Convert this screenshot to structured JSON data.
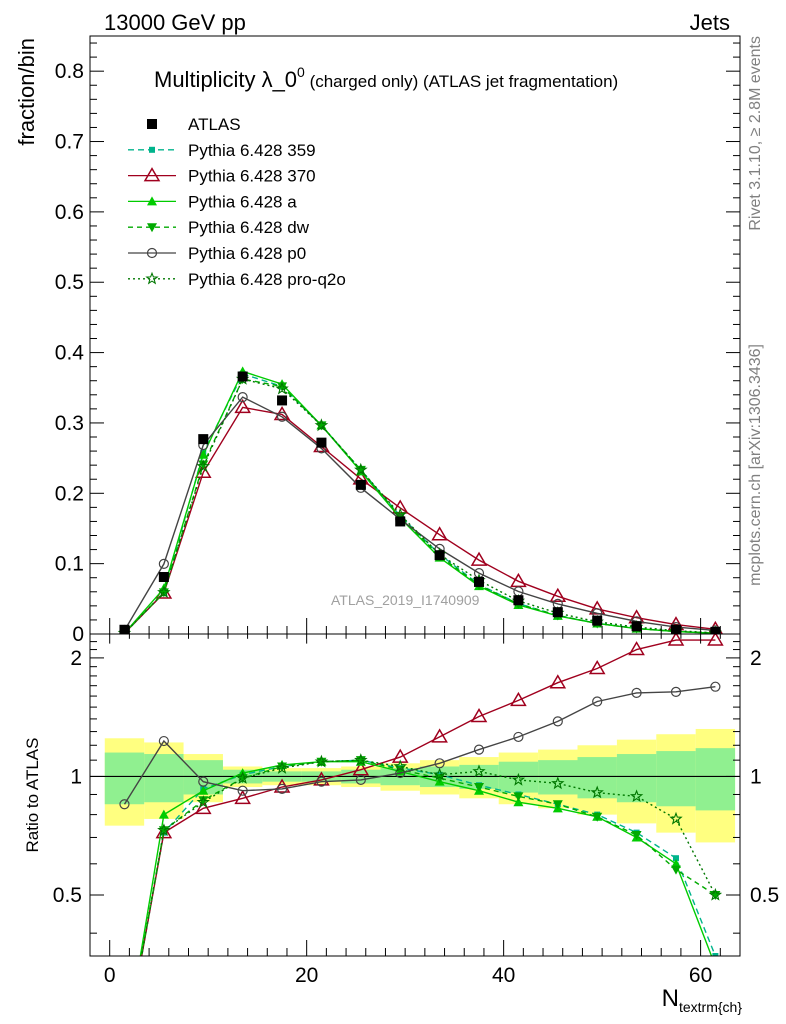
{
  "header": {
    "left": "13000 GeV pp",
    "right": "Jets"
  },
  "side_labels": {
    "rivet": "Rivet 3.1.10, ≥ 2.8M events",
    "mcplots": "mcplots.cern.ch [arXiv:1306.3436]"
  },
  "analysis_id": "ATLAS_2019_I1740909",
  "chart_data": {
    "type": "line",
    "title": "Multiplicity λ_0",
    "title_sup": "0",
    "title_suffix": " (charged only) (ATLAS jet fragmentation)",
    "xlabel": "N",
    "xlabel_sub": "textrm{ch}",
    "ylabel": "fraction/bin",
    "ratio_ylabel": "Ratio to ATLAS",
    "xlim": [
      -2,
      64
    ],
    "ylim": [
      0,
      0.85
    ],
    "ratio_ylim": [
      0.35,
      2.3
    ],
    "x_ticks": [
      0,
      20,
      40,
      60
    ],
    "y_ticks": [
      "0",
      "0.1",
      "0.2",
      "0.3",
      "0.4",
      "0.5",
      "0.6",
      "0.7",
      "0.8"
    ],
    "ratio_ticks": [
      "0.5",
      "1",
      "2"
    ],
    "x": [
      1.5,
      5.5,
      9.5,
      13.5,
      17.5,
      21.5,
      25.5,
      29.5,
      33.5,
      37.5,
      41.5,
      45.5,
      49.5,
      53.5,
      57.5,
      61.5
    ],
    "bin_edges": [
      -0.5,
      3.5,
      7.5,
      11.5,
      15.5,
      19.5,
      23.5,
      27.5,
      31.5,
      35.5,
      39.5,
      43.5,
      47.5,
      51.5,
      55.5,
      59.5,
      63.5
    ],
    "data": {
      "name": "ATLAS",
      "values": [
        0.006,
        0.081,
        0.277,
        0.366,
        0.332,
        0.272,
        0.212,
        0.16,
        0.112,
        0.074,
        0.048,
        0.031,
        0.019,
        0.011,
        0.006,
        0.003
      ],
      "band_inner": [
        0.15,
        0.14,
        0.1,
        0.04,
        0.03,
        0.03,
        0.04,
        0.05,
        0.06,
        0.07,
        0.09,
        0.1,
        0.12,
        0.14,
        0.16,
        0.18
      ],
      "band_outer": [
        0.25,
        0.22,
        0.14,
        0.06,
        0.05,
        0.05,
        0.06,
        0.08,
        0.1,
        0.12,
        0.15,
        0.17,
        0.2,
        0.24,
        0.28,
        0.32
      ]
    },
    "series": [
      {
        "name": "Pythia 6.428 359",
        "color": "#00b48c",
        "dash": "6,4",
        "marker": "square-small",
        "ratio": [
          0.2,
          0.72,
          0.93,
          1.01,
          1.06,
          1.09,
          1.1,
          1.05,
          1.01,
          0.95,
          0.9,
          0.85,
          0.8,
          0.72,
          0.62,
          0.35
        ]
      },
      {
        "name": "Pythia 6.428 370",
        "color": "#a0001e",
        "dash": "",
        "marker": "triangle-open",
        "ratio": [
          0.2,
          0.72,
          0.83,
          0.88,
          0.94,
          0.98,
          1.04,
          1.12,
          1.26,
          1.42,
          1.56,
          1.73,
          1.88,
          2.1,
          2.22,
          2.22
        ]
      },
      {
        "name": "Pythia 6.428 a",
        "color": "#00cc00",
        "dash": "",
        "marker": "triangle",
        "ratio": [
          0.2,
          0.8,
          0.92,
          1.02,
          1.07,
          1.09,
          1.09,
          1.03,
          0.97,
          0.92,
          0.86,
          0.83,
          0.79,
          0.7,
          0.6,
          0.33
        ]
      },
      {
        "name": "Pythia 6.428 dw",
        "color": "#00aa00",
        "dash": "5,4",
        "marker": "triangle-down",
        "ratio": [
          0.2,
          0.73,
          0.87,
          0.99,
          1.06,
          1.09,
          1.1,
          1.04,
          0.99,
          0.94,
          0.89,
          0.85,
          0.79,
          0.71,
          0.58,
          0.5
        ]
      },
      {
        "name": "Pythia 6.428 p0",
        "color": "#444444",
        "dash": "",
        "marker": "circle-open",
        "ratio": [
          0.85,
          1.23,
          0.97,
          0.92,
          0.93,
          0.97,
          0.98,
          1.02,
          1.08,
          1.17,
          1.26,
          1.38,
          1.55,
          1.63,
          1.64,
          1.69
        ]
      },
      {
        "name": "Pythia 6.428 pro-q2o",
        "color": "#007700",
        "dash": "2,3",
        "marker": "star-open",
        "ratio": [
          0.2,
          0.73,
          0.86,
          0.99,
          1.05,
          1.09,
          1.1,
          1.06,
          1.01,
          1.03,
          0.98,
          0.96,
          0.91,
          0.89,
          0.78,
          0.5
        ]
      }
    ]
  }
}
